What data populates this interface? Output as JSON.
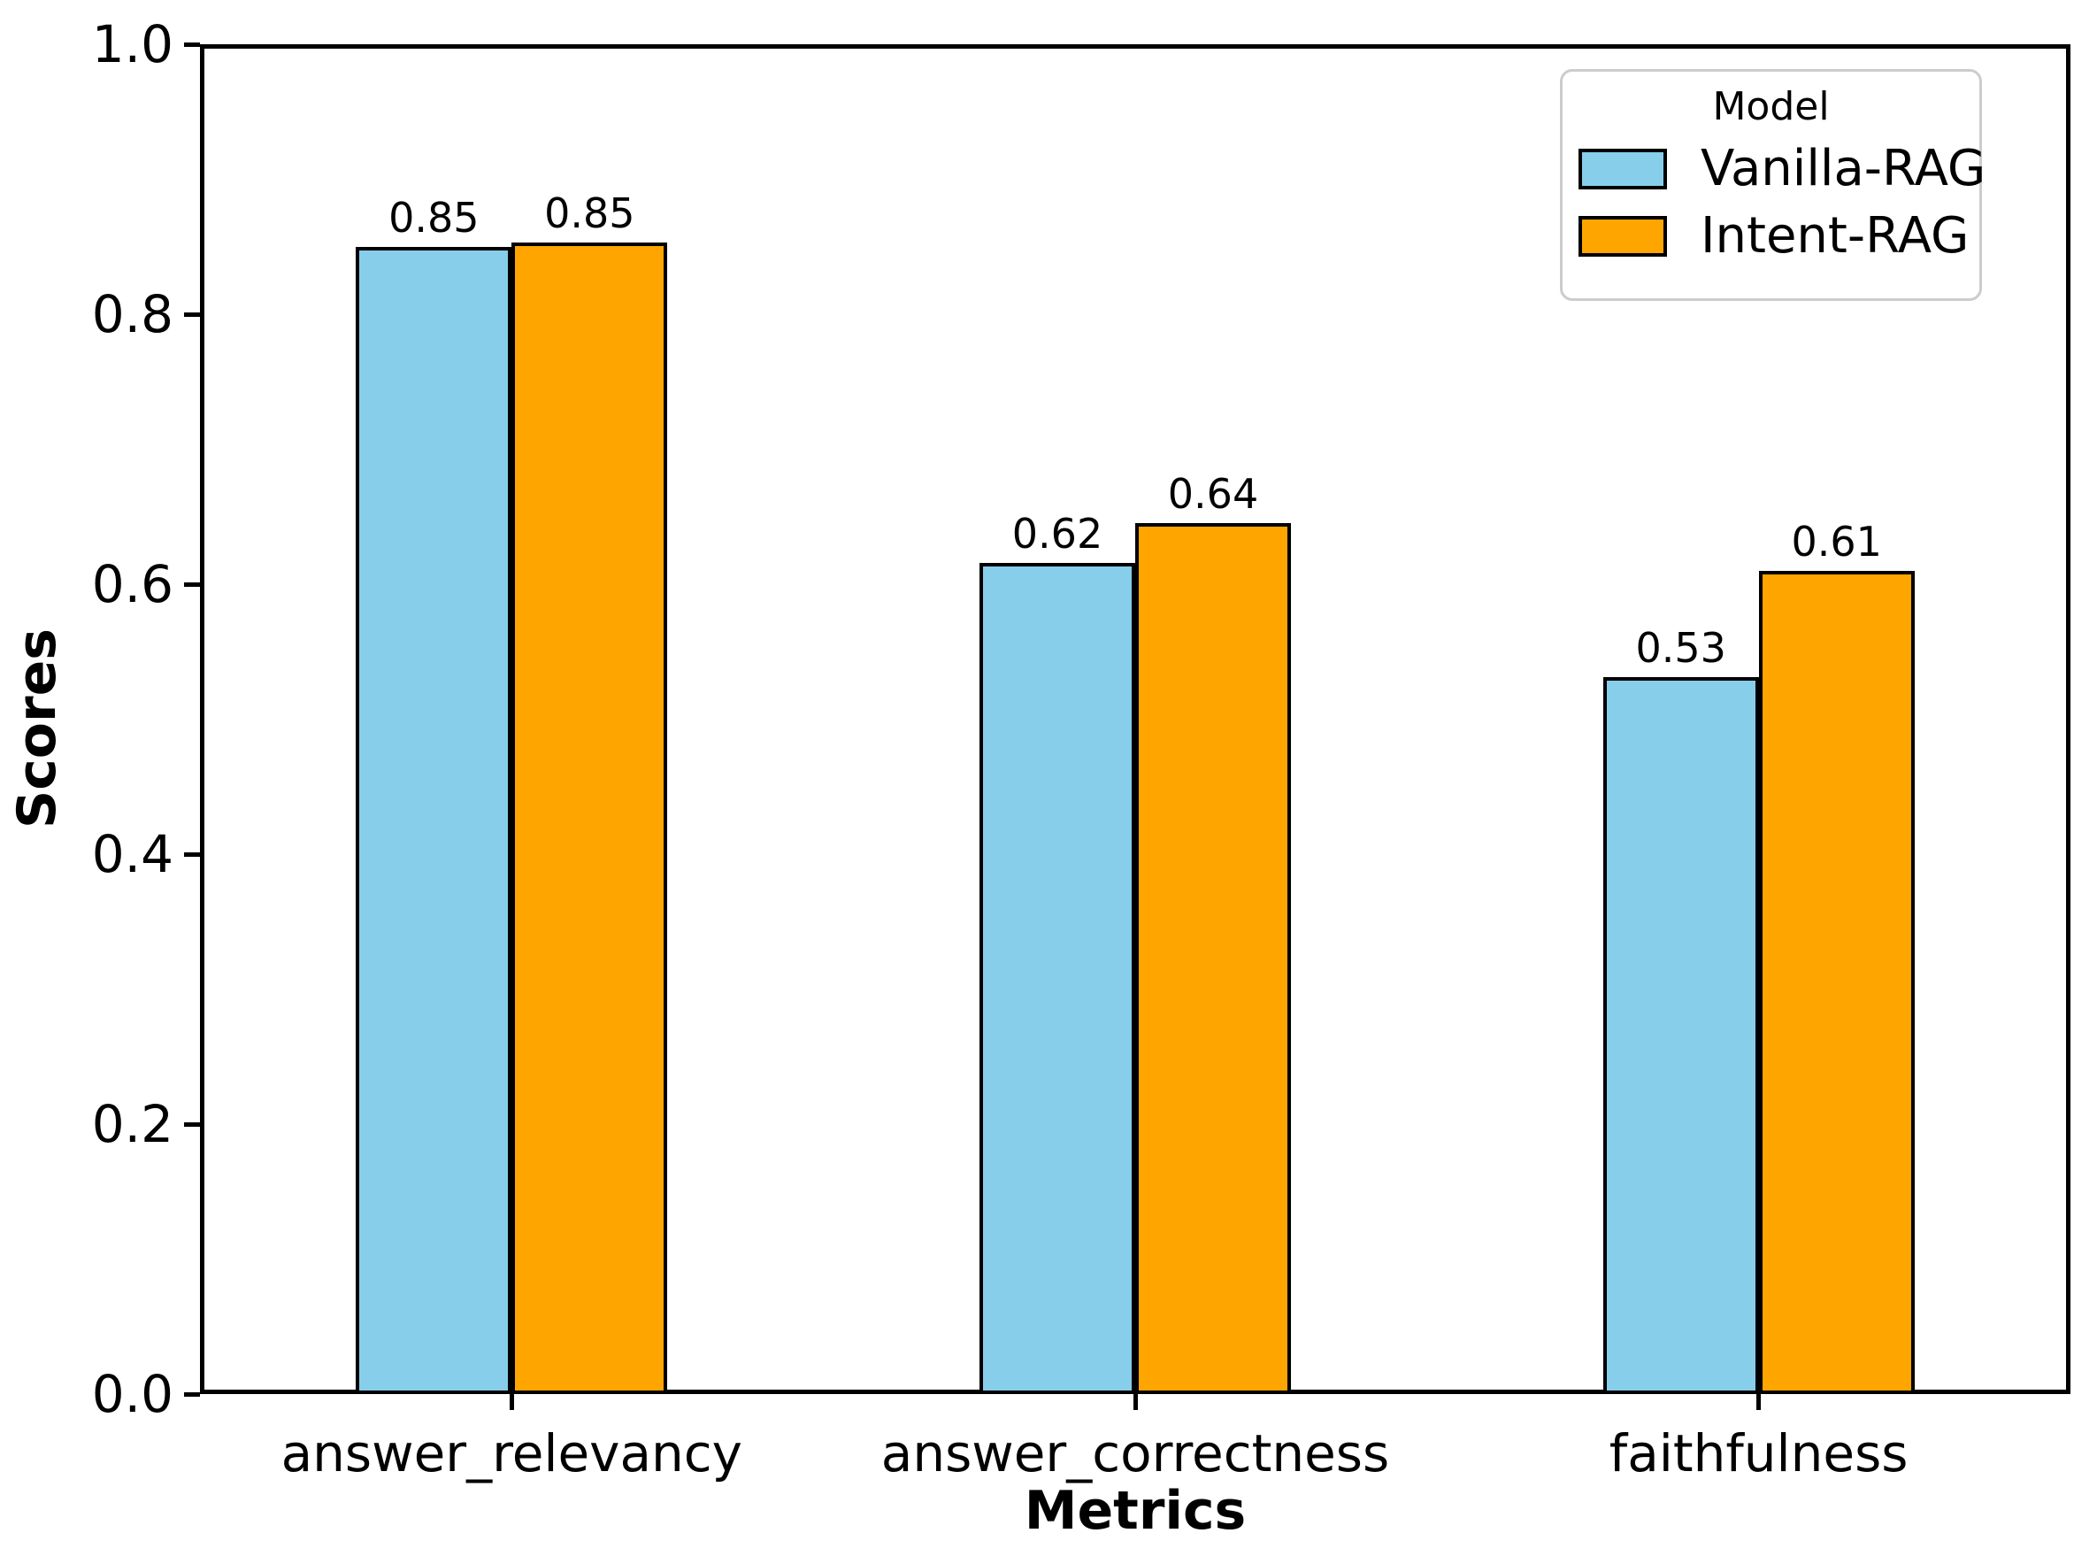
{
  "chart_data": {
    "type": "bar",
    "title": "",
    "xlabel": "Metrics",
    "ylabel": "Scores",
    "categories": [
      "answer_relevancy",
      "answer_correctness",
      "faithfulness"
    ],
    "series": [
      {
        "name": "Vanilla-RAG",
        "color": "#87CEEB",
        "values": [
          0.85,
          0.62,
          0.53
        ],
        "bar_heights": [
          0.85,
          0.616,
          0.531
        ],
        "labels": [
          "0.85",
          "0.62",
          "0.53"
        ]
      },
      {
        "name": "Intent-RAG",
        "color": "#FFA500",
        "values": [
          0.85,
          0.64,
          0.61
        ],
        "bar_heights": [
          0.853,
          0.645,
          0.61
        ],
        "labels": [
          "0.85",
          "0.64",
          "0.61"
        ]
      }
    ],
    "ylim": [
      0.0,
      1.0
    ],
    "yticks": [
      {
        "value": 0.0,
        "label": "0.0"
      },
      {
        "value": 0.2,
        "label": "0.2"
      },
      {
        "value": 0.4,
        "label": "0.4"
      },
      {
        "value": 0.6,
        "label": "0.6"
      },
      {
        "value": 0.8,
        "label": "0.8"
      },
      {
        "value": 1.0,
        "label": "1.0"
      }
    ],
    "grid": false,
    "legend": {
      "title": "Model",
      "position": "upper right"
    },
    "colors": {
      "bar_edge": "#000000",
      "spine": "#000000",
      "text": "#000000",
      "legend_border": "#cccccc",
      "background": "#ffffff"
    }
  }
}
